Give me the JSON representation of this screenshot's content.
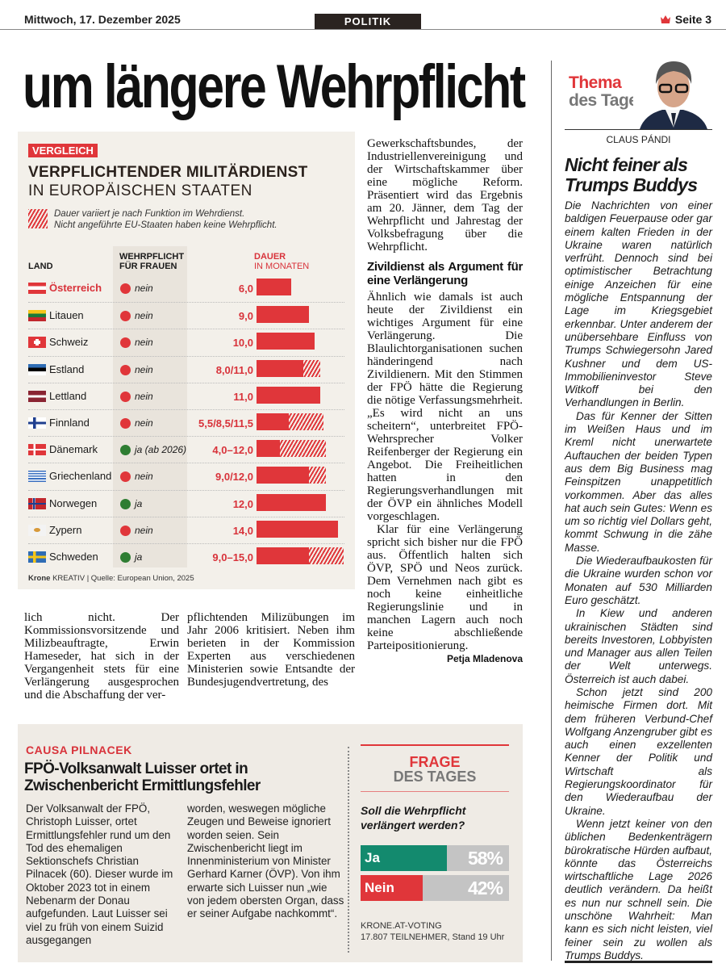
{
  "header": {
    "date": "Mittwoch, 17. Dezember 2025",
    "section": "POLITIK",
    "page": "Seite 3",
    "page_icon": "crown-icon"
  },
  "headline": "um längere Wehrpflicht",
  "infographic": {
    "kicker": "VERGLEICH",
    "title": "VERPFLICHTENDER MILITÄRDIENST",
    "subtitle": "IN EUROPÄISCHEN STAATEN",
    "legend_line1": "Dauer variiert je nach Funktion im Wehrdienst.",
    "legend_line2": "Nicht angeführte EU-Staaten haben keine Wehrpflicht.",
    "col_land": "LAND",
    "col_women_1": "WEHRPFLICHT",
    "col_women_2": "FÜR FRAUEN",
    "col_duration_1": "DAUER",
    "col_duration_2": "IN MONATEN",
    "colors": {
      "bar": "#e0363a",
      "yes": "#2e7d32",
      "no": "#e0363a"
    },
    "rows": [
      {
        "country": "Österreich",
        "flag": "at",
        "women": "nein",
        "women_yes": false,
        "duration": "6,0",
        "min": 6,
        "max": 6
      },
      {
        "country": "Litauen",
        "flag": "lt",
        "women": "nein",
        "women_yes": false,
        "duration": "9,0",
        "min": 9,
        "max": 9
      },
      {
        "country": "Schweiz",
        "flag": "ch",
        "women": "nein",
        "women_yes": false,
        "duration": "10,0",
        "min": 10,
        "max": 10
      },
      {
        "country": "Estland",
        "flag": "ee",
        "women": "nein",
        "women_yes": false,
        "duration": "8,0/11,0",
        "min": 8,
        "max": 11
      },
      {
        "country": "Lettland",
        "flag": "lv",
        "women": "nein",
        "women_yes": false,
        "duration": "11,0",
        "min": 11,
        "max": 11
      },
      {
        "country": "Finnland",
        "flag": "fi",
        "women": "nein",
        "women_yes": false,
        "duration": "5,5/8,5/11,5",
        "min": 5.5,
        "max": 11.5
      },
      {
        "country": "Dänemark",
        "flag": "dk",
        "women": "ja (ab 2026)",
        "women_yes": true,
        "duration": "4,0–12,0",
        "min": 4,
        "max": 12
      },
      {
        "country": "Griechenland",
        "flag": "gr",
        "women": "nein",
        "women_yes": false,
        "duration": "9,0/12,0",
        "min": 9,
        "max": 12
      },
      {
        "country": "Norwegen",
        "flag": "no",
        "women": "ja",
        "women_yes": true,
        "duration": "12,0",
        "min": 12,
        "max": 12
      },
      {
        "country": "Zypern",
        "flag": "cy",
        "women": "nein",
        "women_yes": false,
        "duration": "14,0",
        "min": 14,
        "max": 14
      },
      {
        "country": "Schweden",
        "flag": "se",
        "women": "ja",
        "women_yes": true,
        "duration": "9,0–15,0",
        "min": 9,
        "max": 15
      }
    ],
    "footer_brand": "Krone",
    "footer_brand2": "KREATIV",
    "footer_source": "|  Quelle: European Union, 2025"
  },
  "article": {
    "mid_p1": "Gewerkschaftsbundes, der Industriellenvereinigung und der Wirtschaftskammer über eine mögliche Reform. Präsentiert wird das Ergebnis am 20. Jänner, dem Tag der Wehrpflicht und Jahrestag der Volksbefragung über die Wehrpflicht.",
    "subhead": "Zivildienst als Argument für eine Verlängerung",
    "mid_p2": "Ähnlich wie damals ist auch heute der Zivildienst ein wichtiges Argument für eine Verlängerung. Die Blaulichtorganisationen suchen händeringend nach Zivildienern. Mit den Stimmen der FPÖ hätte die Regierung die nötige Verfassungsmehrheit. „Es wird nicht an uns scheitern“, unterbreitet FPÖ-Wehrsprecher Volker Reifenberger der Regierung ein Angebot. Die Freiheitlichen hatten in den Regierungsverhandlungen mit der ÖVP ein ähnliches Modell vorgeschlagen.",
    "mid_p3": "Klar für eine Verlängerung spricht sich bisher nur die FPÖ aus. Öffentlich halten sich ÖVP, SPÖ und Neos zurück. Dem Vernehmen nach gibt es noch keine einheitliche Regierungslinie und in manchen Lagern auch noch keine abschließende Parteipositionierung.",
    "author": "Petja Mladenova",
    "bottom_col1": "lich nicht. Der Kommissionsvorsitzende und Milizbeauftragte, Erwin Hameseder, hat sich in der Vergangenheit stets für eine Verlängerung ausgesprochen und die Abschaffung der ver-",
    "bottom_col2": "pflichtenden Milizübungen im Jahr 2006 kritisiert. Neben ihm berieten in der Kommission Experten aus verschiedenen Ministerien sowie Entsandte der Bundesjugendvertretung, des"
  },
  "commentary": {
    "label_1": "Thema",
    "label_2": "des Tages",
    "author": "CLAUS PÁNDI",
    "title": "Nicht feiner als Trumps Buddys",
    "paragraphs": [
      "Die Nachrichten von einer baldigen Feuerpause oder gar einem kalten Frieden in der Ukraine waren natürlich verfrüht. Dennoch sind bei optimistischer Betrachtung einige Anzeichen für eine mögliche Entspannung der Lage im Kriegsgebiet erkennbar. Unter anderem der unübersehbare Einfluss von Trumps Schwiegersohn Jared Kushner und dem US-Immobilieninvestor Steve Witkoff bei den Verhandlungen in Berlin.",
      "Das für Kenner der Sitten im Weißen Haus und im Kreml nicht unerwartete Auftauchen der beiden Typen aus dem Big Business mag Feinspitzen unappetitlich vorkommen. Aber das alles hat auch sein Gutes: Wenn es um so richtig viel Dollars geht, kommt Schwung in die zähe Masse.",
      "Die Wiederaufbaukosten für die Ukraine wurden schon vor Monaten auf 530 Milliarden Euro geschätzt.",
      "In Kiew und anderen ukrainischen Städten sind bereits Investoren, Lobbyisten und Manager aus allen Teilen der Welt unterwegs. Österreich ist auch dabei.",
      "Schon jetzt sind 200 heimische Firmen dort. Mit dem früheren Verbund-Chef Wolfgang Anzengruber gibt es auch einen exzellenten Kenner der Politik und Wirtschaft als Regierungskoordinator für den Wiederaufbau der Ukraine.",
      "Wenn jetzt keiner von den üblichen Bedenkenträgern bürokratische Hürden aufbaut, könnte das Österreichs wirtschaftliche Lage 2026 deutlich verändern. Da heißt es nun nur schnell sein. Die unschöne Wahrheit: Man kann es sich nicht leisten, viel feiner sein zu wollen als Trumps Buddys."
    ]
  },
  "box": {
    "kicker": "CAUSA PILNACEK",
    "headline": "FPÖ-Volksanwalt Luisser ortet in Zwischenbericht Ermittlungsfehler",
    "col1": "Der Volksanwalt der FPÖ, Christoph Luisser, ortet Ermittlungsfehler rund um den Tod des ehemaligen Sektionschefs Christian Pilnacek (60). Dieser wurde im Oktober 2023 tot in einem Nebenarm der Donau aufgefunden. Laut Luisser sei viel zu früh von einem Suizid ausgegangen",
    "col2": "worden, weswegen mögliche Zeugen und Beweise ignoriert worden seien. Sein Zwischenbericht liegt im Innenministerium von Minister Gerhard Karner (ÖVP). Von ihm erwarte sich Luisser nun „wie von jedem obersten Organ, dass er seiner Aufgabe nachkommt“."
  },
  "poll": {
    "title_1": "FRAGE",
    "title_2": "DES TAGES",
    "question": "Soll die Wehrpflicht verlängert werden?",
    "options": [
      {
        "label": "Ja",
        "percent_text": "58%",
        "percent": 58,
        "color": "#138a6e"
      },
      {
        "label": "Nein",
        "percent_text": "42%",
        "percent": 42,
        "color": "#e0363a"
      }
    ],
    "source": "KRONE.AT-VOTING",
    "participants": "17.807 TEILNEHMER, Stand 19 Uhr"
  }
}
